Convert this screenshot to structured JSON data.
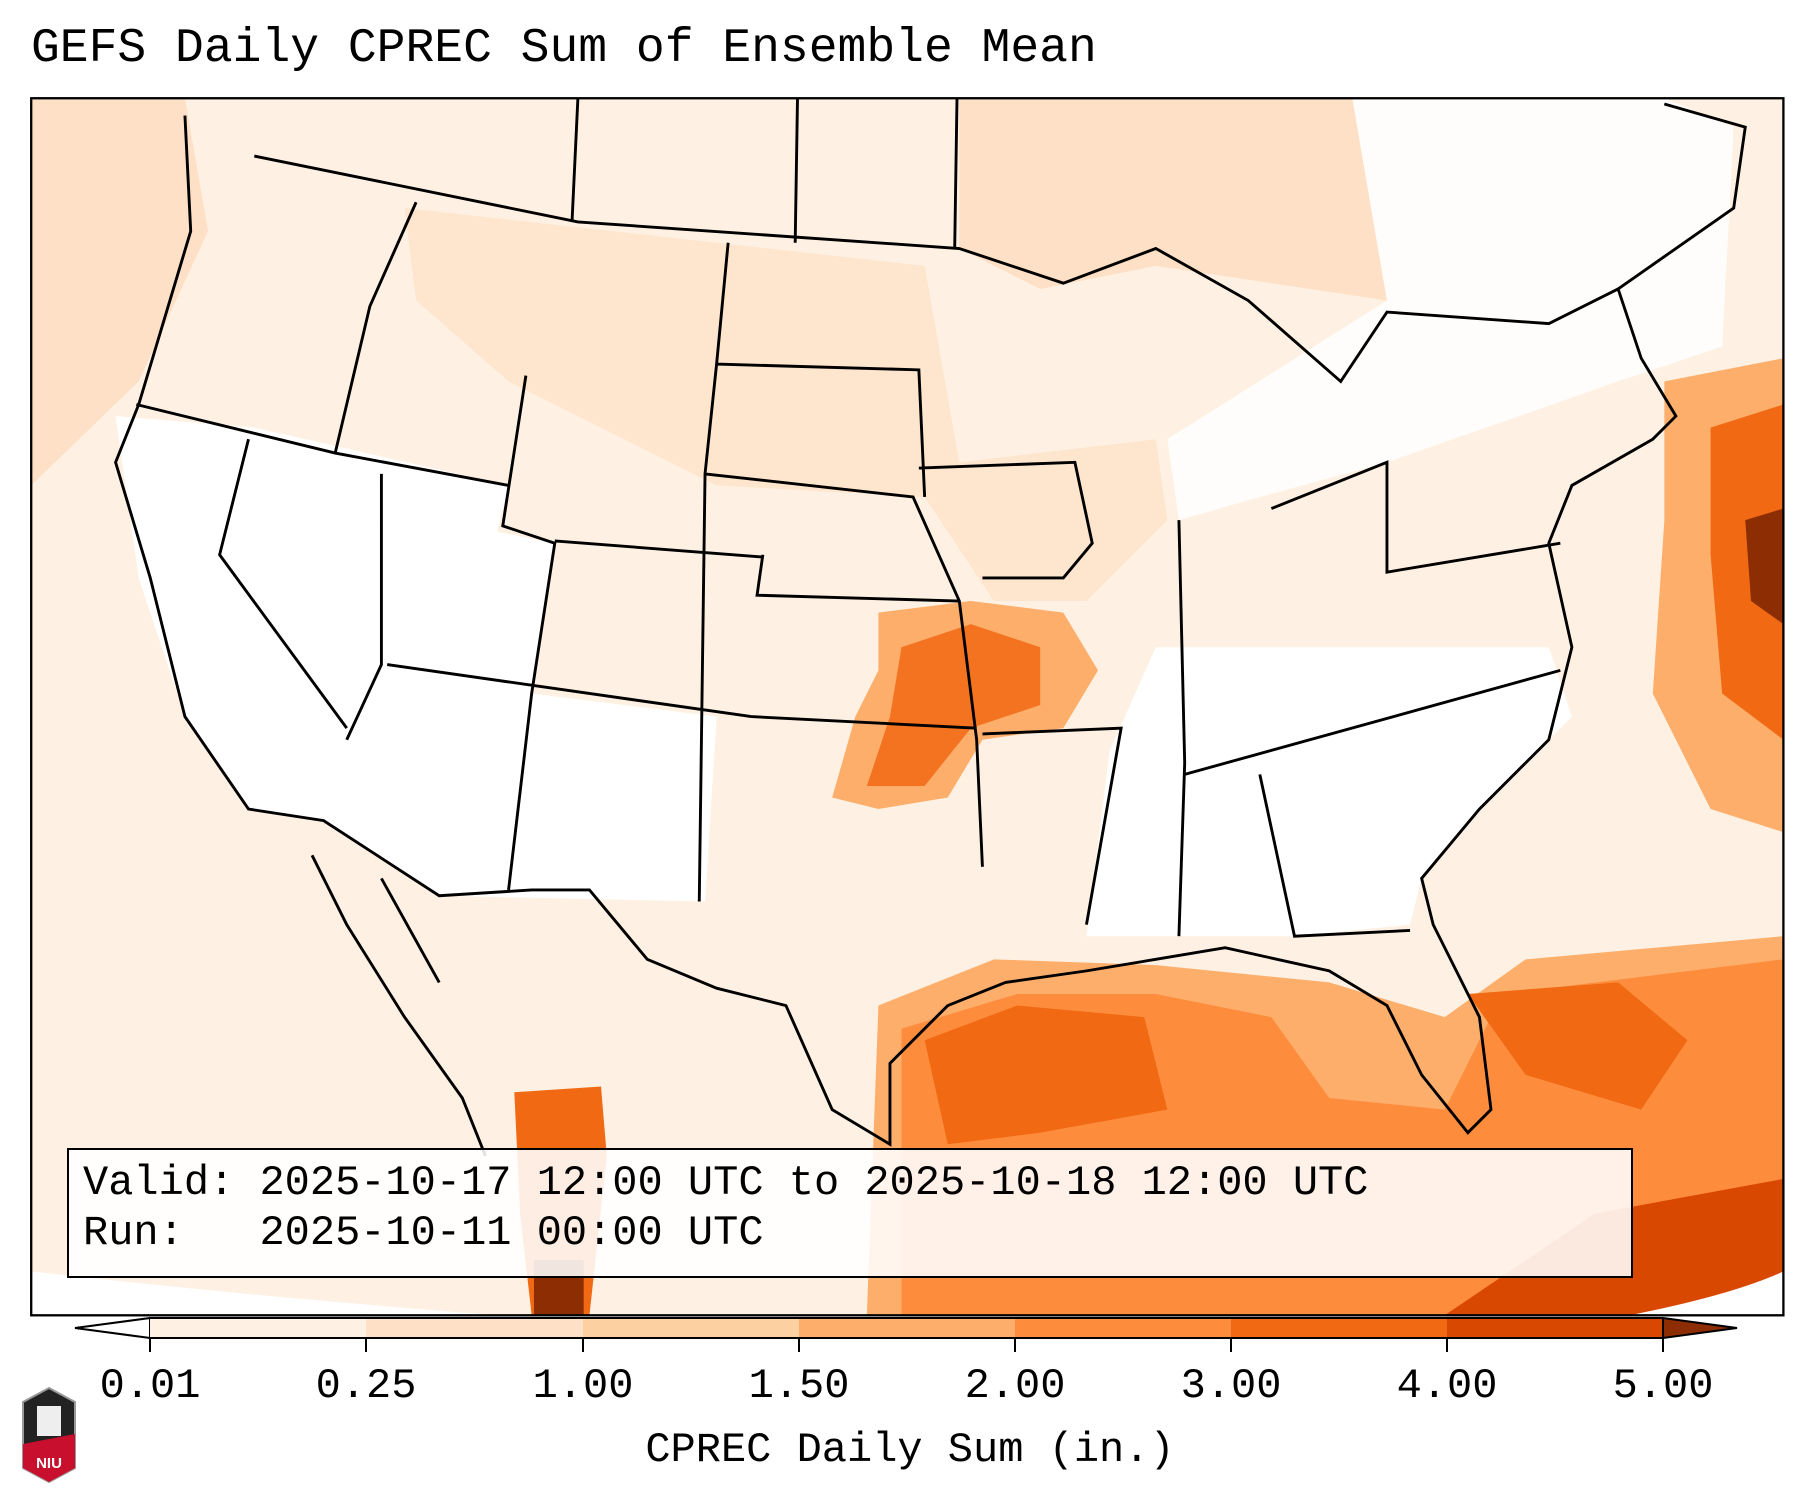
{
  "title": "GEFS Daily CPREC Sum of Ensemble Mean",
  "info": {
    "valid_label": "Valid:",
    "valid_value": "2025-10-17 12:00 UTC to 2025-10-18 12:00 UTC",
    "run_label": "Run:",
    "run_value": "2025-10-11 00:00 UTC"
  },
  "colorbar": {
    "label": "CPREC Daily Sum (in.)",
    "ticks": [
      "0.01",
      "0.25",
      "1.00",
      "1.50",
      "2.00",
      "3.00",
      "4.00",
      "5.00"
    ],
    "colors": [
      "#fef1e3",
      "#fde0c5",
      "#fdd0a2",
      "#fdae6b",
      "#fd8d3c",
      "#f16913",
      "#d94801",
      "#8c2d04"
    ],
    "under_color": "#ffffff"
  },
  "logo": {
    "text": "NIU"
  }
}
